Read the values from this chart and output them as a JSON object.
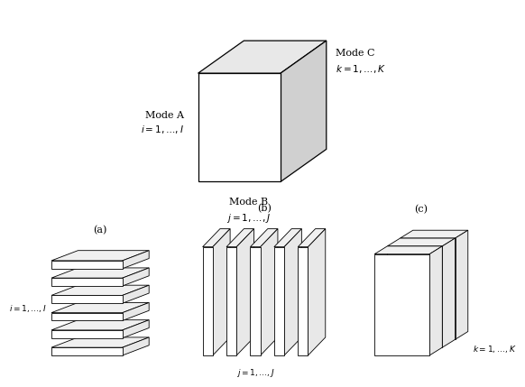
{
  "bg_color": "#ffffff",
  "line_color": "#000000",
  "face_white": "#ffffff",
  "face_top": "#e8e8e8",
  "face_right": "#d0d0d0",
  "face_top2": "#f2f2f2",
  "face_right2": "#e4e4e4",
  "label_fontsize": 8,
  "sub_fontsize": 8,
  "mode_a_label": "Mode A",
  "mode_a_sub": "$i = 1,\\ldots, I$",
  "mode_b_label": "Mode B",
  "mode_b_sub": "$j = 1,\\ldots, J$",
  "mode_c_label": "Mode C",
  "mode_c_sub": "$k = 1,\\ldots, K$",
  "label_a": "$i = 1,\\ldots, I$",
  "label_b": "$j = 1,\\ldots, J$",
  "label_c": "$k = 1,\\ldots, K$",
  "sub_a": "(a)",
  "sub_b": "(b)",
  "sub_c": "(c)"
}
